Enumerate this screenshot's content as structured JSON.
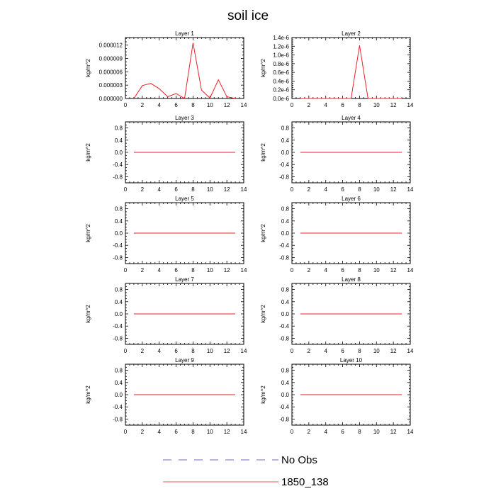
{
  "title": "soil ice",
  "legend": [
    {
      "name": "No Obs",
      "color": "#3b3bb8",
      "dash": true
    },
    {
      "name": "1850_138",
      "color": "#e8202a",
      "dash": false
    }
  ],
  "chart_data": [
    {
      "type": "line",
      "title": "Layer 1",
      "ylabel": "kg/m^2",
      "xlim": [
        0,
        14
      ],
      "xticks": [
        0,
        2,
        4,
        6,
        8,
        10,
        12,
        14
      ],
      "ylim": [
        0,
        1.37e-05
      ],
      "yticks": [
        0,
        3e-06,
        6e-06,
        9e-06,
        1.2e-05
      ],
      "yticklabels": [
        "0.000000",
        "0.000003",
        "0.000006",
        "0.000009",
        "0.000012"
      ],
      "series": [
        {
          "name": "1850_138",
          "color": "#e8202a",
          "x": [
            1,
            2,
            3,
            4,
            5,
            6,
            7,
            8,
            9,
            10,
            11,
            12,
            13
          ],
          "y": [
            0,
            2.9e-06,
            3.4e-06,
            2.2e-06,
            4e-07,
            1.1e-06,
            0,
            1.25e-05,
            1.9e-06,
            1e-07,
            4.2e-06,
            4e-07,
            0
          ]
        }
      ]
    },
    {
      "type": "line",
      "title": "Layer 2",
      "ylabel": "kg/m^2",
      "xlim": [
        0,
        14
      ],
      "xticks": [
        0,
        2,
        4,
        6,
        8,
        10,
        12,
        14
      ],
      "ylim": [
        0,
        1.4e-06
      ],
      "yticks": [
        0,
        2e-07,
        4e-07,
        6e-07,
        8e-07,
        1e-06,
        1.2e-06,
        1.4e-06
      ],
      "yticklabels": [
        "0.0e-6",
        "0.2e-6",
        "0.4e-6",
        "0.6e-6",
        "0.8e-6",
        "1.0e-6",
        "1.2e-6",
        "1.4e-6"
      ],
      "series": [
        {
          "name": "1850_138",
          "color": "#e8202a",
          "x": [
            1,
            2,
            3,
            4,
            5,
            6,
            7,
            8,
            9,
            10,
            11,
            12,
            13
          ],
          "y": [
            0,
            0,
            0,
            0,
            0,
            0,
            0,
            1.22e-06,
            0,
            0,
            0,
            0,
            0
          ]
        }
      ]
    },
    {
      "type": "line",
      "title": "Layer 3",
      "ylabel": "kg/m^2",
      "xlim": [
        0,
        14
      ],
      "xticks": [
        0,
        2,
        4,
        6,
        8,
        10,
        12,
        14
      ],
      "ylim": [
        -1,
        1
      ],
      "yticks": [
        -0.8,
        -0.4,
        0,
        0.4,
        0.8
      ],
      "yticklabels": [
        "-0.8",
        "-0.4",
        "0.0",
        "0.4",
        "0.8"
      ],
      "series": [
        {
          "name": "1850_138",
          "color": "#e8202a",
          "x": [
            1,
            2,
            3,
            4,
            5,
            6,
            7,
            8,
            9,
            10,
            11,
            12,
            13
          ],
          "y": [
            0,
            0,
            0,
            0,
            0,
            0,
            0,
            0,
            0,
            0,
            0,
            0,
            0
          ]
        }
      ]
    },
    {
      "type": "line",
      "title": "Layer 4",
      "ylabel": "kg/m^2",
      "xlim": [
        0,
        14
      ],
      "xticks": [
        0,
        2,
        4,
        6,
        8,
        10,
        12,
        14
      ],
      "ylim": [
        -1,
        1
      ],
      "yticks": [
        -0.8,
        -0.4,
        0,
        0.4,
        0.8
      ],
      "yticklabels": [
        "-0.8",
        "-0.4",
        "0.0",
        "0.4",
        "0.8"
      ],
      "series": [
        {
          "name": "1850_138",
          "color": "#e8202a",
          "x": [
            1,
            2,
            3,
            4,
            5,
            6,
            7,
            8,
            9,
            10,
            11,
            12,
            13
          ],
          "y": [
            0,
            0,
            0,
            0,
            0,
            0,
            0,
            0,
            0,
            0,
            0,
            0,
            0
          ]
        }
      ]
    },
    {
      "type": "line",
      "title": "Layer 5",
      "ylabel": "kg/m^2",
      "xlim": [
        0,
        14
      ],
      "xticks": [
        0,
        2,
        4,
        6,
        8,
        10,
        12,
        14
      ],
      "ylim": [
        -1,
        1
      ],
      "yticks": [
        -0.8,
        -0.4,
        0,
        0.4,
        0.8
      ],
      "yticklabels": [
        "-0.8",
        "-0.4",
        "0.0",
        "0.4",
        "0.8"
      ],
      "series": [
        {
          "name": "1850_138",
          "color": "#e8202a",
          "x": [
            1,
            2,
            3,
            4,
            5,
            6,
            7,
            8,
            9,
            10,
            11,
            12,
            13
          ],
          "y": [
            0,
            0,
            0,
            0,
            0,
            0,
            0,
            0,
            0,
            0,
            0,
            0,
            0
          ]
        }
      ]
    },
    {
      "type": "line",
      "title": "Layer 6",
      "ylabel": "kg/m^2",
      "xlim": [
        0,
        14
      ],
      "xticks": [
        0,
        2,
        4,
        6,
        8,
        10,
        12,
        14
      ],
      "ylim": [
        -1,
        1
      ],
      "yticks": [
        -0.8,
        -0.4,
        0,
        0.4,
        0.8
      ],
      "yticklabels": [
        "-0.8",
        "-0.4",
        "0.0",
        "0.4",
        "0.8"
      ],
      "series": [
        {
          "name": "1850_138",
          "color": "#e8202a",
          "x": [
            1,
            2,
            3,
            4,
            5,
            6,
            7,
            8,
            9,
            10,
            11,
            12,
            13
          ],
          "y": [
            0,
            0,
            0,
            0,
            0,
            0,
            0,
            0,
            0,
            0,
            0,
            0,
            0
          ]
        }
      ]
    },
    {
      "type": "line",
      "title": "Layer 7",
      "ylabel": "kg/m^2",
      "xlim": [
        0,
        14
      ],
      "xticks": [
        0,
        2,
        4,
        6,
        8,
        10,
        12,
        14
      ],
      "ylim": [
        -1,
        1
      ],
      "yticks": [
        -0.8,
        -0.4,
        0,
        0.4,
        0.8
      ],
      "yticklabels": [
        "-0.8",
        "-0.4",
        "0.0",
        "0.4",
        "0.8"
      ],
      "series": [
        {
          "name": "1850_138",
          "color": "#e8202a",
          "x": [
            1,
            2,
            3,
            4,
            5,
            6,
            7,
            8,
            9,
            10,
            11,
            12,
            13
          ],
          "y": [
            0,
            0,
            0,
            0,
            0,
            0,
            0,
            0,
            0,
            0,
            0,
            0,
            0
          ]
        }
      ]
    },
    {
      "type": "line",
      "title": "Layer 8",
      "ylabel": "kg/m^2",
      "xlim": [
        0,
        14
      ],
      "xticks": [
        0,
        2,
        4,
        6,
        8,
        10,
        12,
        14
      ],
      "ylim": [
        -1,
        1
      ],
      "yticks": [
        -0.8,
        -0.4,
        0,
        0.4,
        0.8
      ],
      "yticklabels": [
        "-0.8",
        "-0.4",
        "0.0",
        "0.4",
        "0.8"
      ],
      "series": [
        {
          "name": "1850_138",
          "color": "#e8202a",
          "x": [
            1,
            2,
            3,
            4,
            5,
            6,
            7,
            8,
            9,
            10,
            11,
            12,
            13
          ],
          "y": [
            0,
            0,
            0,
            0,
            0,
            0,
            0,
            0,
            0,
            0,
            0,
            0,
            0
          ]
        }
      ]
    },
    {
      "type": "line",
      "title": "Layer 9",
      "ylabel": "kg/m^2",
      "xlim": [
        0,
        14
      ],
      "xticks": [
        0,
        2,
        4,
        6,
        8,
        10,
        12,
        14
      ],
      "ylim": [
        -1,
        1
      ],
      "yticks": [
        -0.8,
        -0.4,
        0,
        0.4,
        0.8
      ],
      "yticklabels": [
        "-0.8",
        "-0.4",
        "0.0",
        "0.4",
        "0.8"
      ],
      "series": [
        {
          "name": "1850_138",
          "color": "#e8202a",
          "x": [
            1,
            2,
            3,
            4,
            5,
            6,
            7,
            8,
            9,
            10,
            11,
            12,
            13
          ],
          "y": [
            0,
            0,
            0,
            0,
            0,
            0,
            0,
            0,
            0,
            0,
            0,
            0,
            0
          ]
        }
      ]
    },
    {
      "type": "line",
      "title": "Layer 10",
      "ylabel": "kg/m^2",
      "xlim": [
        0,
        14
      ],
      "xticks": [
        0,
        2,
        4,
        6,
        8,
        10,
        12,
        14
      ],
      "ylim": [
        -1,
        1
      ],
      "yticks": [
        -0.8,
        -0.4,
        0,
        0.4,
        0.8
      ],
      "yticklabels": [
        "-0.8",
        "-0.4",
        "0.0",
        "0.4",
        "0.8"
      ],
      "series": [
        {
          "name": "1850_138",
          "color": "#e8202a",
          "x": [
            1,
            2,
            3,
            4,
            5,
            6,
            7,
            8,
            9,
            10,
            11,
            12,
            13
          ],
          "y": [
            0,
            0,
            0,
            0,
            0,
            0,
            0,
            0,
            0,
            0,
            0,
            0,
            0
          ]
        }
      ]
    }
  ]
}
